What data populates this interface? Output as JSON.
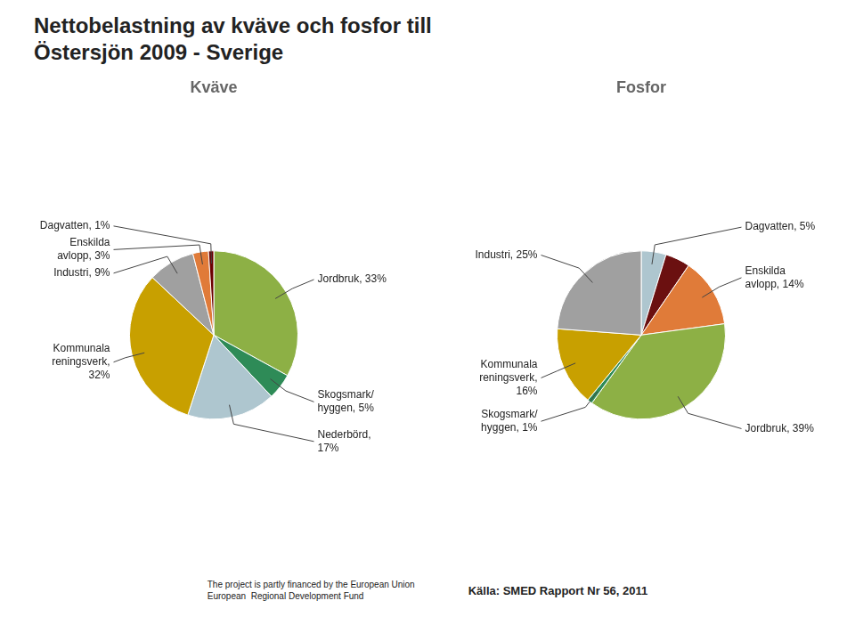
{
  "title": "Nettobelastning av kväve och fosfor till",
  "subtitle": "Östersjön 2009 - Sverige",
  "annotations": [
    "The project is partly financed by the European Union\nEuropean  Regional Development Fund",
    "Källa: SMED Rapport Nr 56, 2011"
  ],
  "chart_data": [
    {
      "type": "pie",
      "title": "Kväve",
      "values": [
        33,
        5,
        17,
        32,
        9,
        3,
        1
      ],
      "colors": [
        "#8db045",
        "#2e8b57",
        "#aec6cf",
        "#c8a000",
        "#a0a0a0",
        "#e07b39",
        "#6b0000"
      ],
      "value_labels": [
        "Jordbruk, 33%",
        "Skogsmark/\nhyggen, 5%",
        "Nederbörd,\n17%",
        "Kommunala\nreningsverk,\n32%",
        "Industri, 9%",
        "Enskilda\navlopp, 3%",
        "Dagvatten, 1%"
      ],
      "data_labels": true
    },
    {
      "type": "pie",
      "title": "Fosfor",
      "values": [
        5,
        5,
        14,
        39,
        1,
        16,
        25
      ],
      "colors": [
        "#aec6cf",
        "#6b1010",
        "#e07b39",
        "#8db045",
        "#2e8b57",
        "#c8a000",
        "#a0a0a0"
      ],
      "value_labels": [
        "Dagvatten, 5%",
        null,
        "Enskilda\navlopp, 14%",
        "Jordbruk, 39%",
        "Skogsmark/\nhyggen, 1%",
        "Kommunala\nreningsverk,\n16%",
        "Industri, 25%"
      ],
      "data_labels": true
    }
  ]
}
